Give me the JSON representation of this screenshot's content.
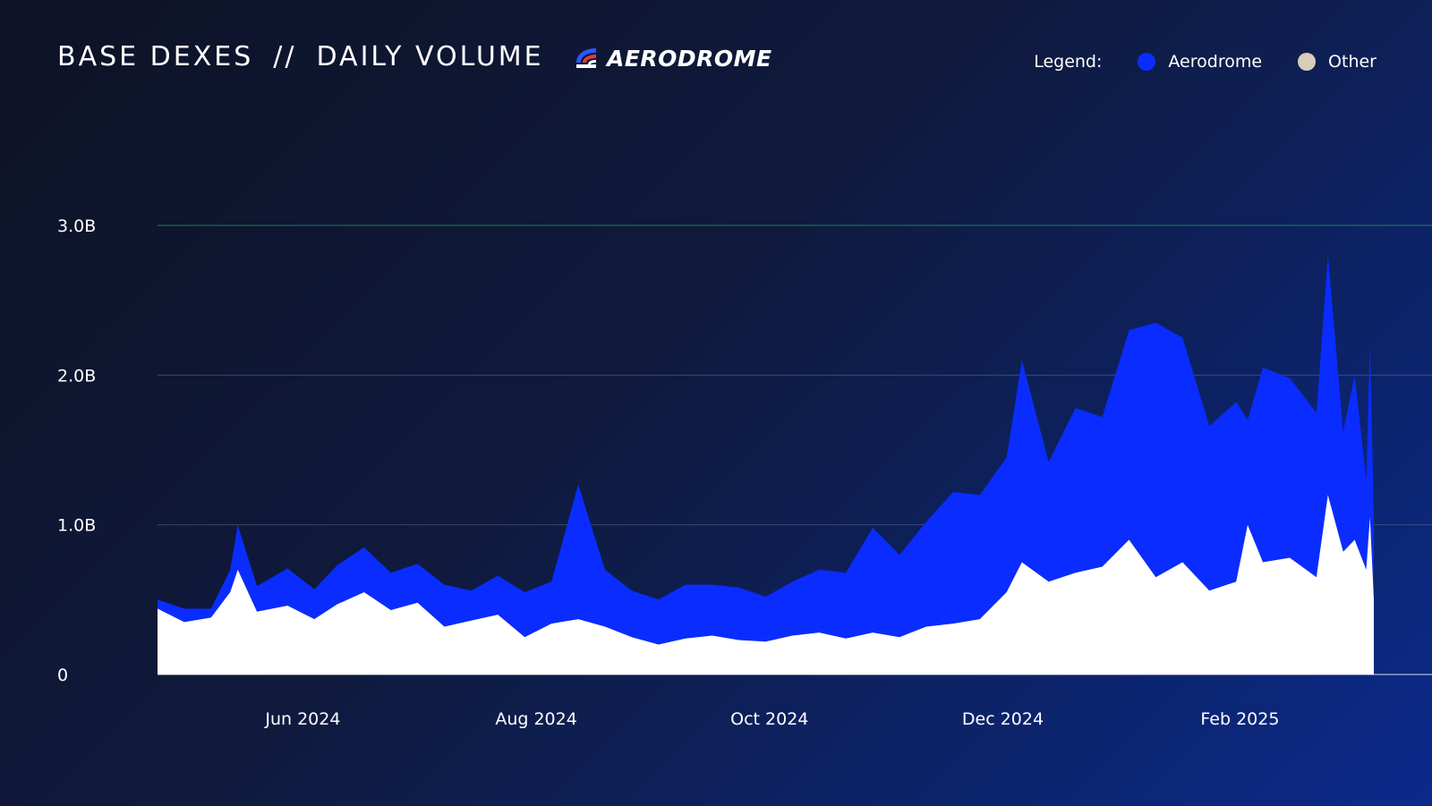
{
  "header": {
    "title_left": "BASE DEXES",
    "separator": "//",
    "title_right": "DAILY VOLUME",
    "brand_name": "AERODROME",
    "brand_icon": "aerodrome-logo-icon"
  },
  "legend": {
    "label": "Legend:",
    "items": [
      {
        "name": "Aerodrome",
        "color": "#0a2cff"
      },
      {
        "name": "Other",
        "color": "#d8cdb8"
      }
    ]
  },
  "chart_data": {
    "type": "area",
    "stacked": true,
    "title": "BASE DEXES // DAILY VOLUME",
    "xlabel": "",
    "ylabel": "",
    "y_ticks": [
      {
        "value": 0,
        "label": "0"
      },
      {
        "value": 1000000000,
        "label": "1.0B"
      },
      {
        "value": 2000000000,
        "label": "2.0B"
      },
      {
        "value": 3000000000,
        "label": "3.0B"
      }
    ],
    "ylim": [
      0,
      3000000000
    ],
    "x_ticks": [
      {
        "date": "2024-06-01",
        "label": "Jun 2024"
      },
      {
        "date": "2024-08-01",
        "label": "Aug 2024"
      },
      {
        "date": "2024-10-01",
        "label": "Oct 2024"
      },
      {
        "date": "2024-12-01",
        "label": "Dec 2024"
      },
      {
        "date": "2025-02-01",
        "label": "Feb 2025"
      }
    ],
    "xlim": [
      "2024-04-24",
      "2025-03-08"
    ],
    "grid": true,
    "legend_position": "top-right",
    "series": [
      {
        "name": "Other",
        "color": "#ffffff",
        "points": [
          [
            "2024-04-24",
            440000000
          ],
          [
            "2024-05-01",
            350000000
          ],
          [
            "2024-05-08",
            380000000
          ],
          [
            "2024-05-13",
            550000000
          ],
          [
            "2024-05-15",
            700000000
          ],
          [
            "2024-05-20",
            420000000
          ],
          [
            "2024-05-28",
            460000000
          ],
          [
            "2024-06-04",
            370000000
          ],
          [
            "2024-06-10",
            470000000
          ],
          [
            "2024-06-17",
            550000000
          ],
          [
            "2024-06-24",
            430000000
          ],
          [
            "2024-07-01",
            480000000
          ],
          [
            "2024-07-08",
            320000000
          ],
          [
            "2024-07-15",
            360000000
          ],
          [
            "2024-07-22",
            400000000
          ],
          [
            "2024-07-29",
            250000000
          ],
          [
            "2024-08-05",
            340000000
          ],
          [
            "2024-08-12",
            370000000
          ],
          [
            "2024-08-19",
            320000000
          ],
          [
            "2024-08-26",
            250000000
          ],
          [
            "2024-09-02",
            200000000
          ],
          [
            "2024-09-09",
            240000000
          ],
          [
            "2024-09-16",
            260000000
          ],
          [
            "2024-09-23",
            230000000
          ],
          [
            "2024-09-30",
            220000000
          ],
          [
            "2024-10-07",
            260000000
          ],
          [
            "2024-10-14",
            280000000
          ],
          [
            "2024-10-21",
            240000000
          ],
          [
            "2024-10-28",
            280000000
          ],
          [
            "2024-11-04",
            250000000
          ],
          [
            "2024-11-11",
            320000000
          ],
          [
            "2024-11-18",
            340000000
          ],
          [
            "2024-11-25",
            370000000
          ],
          [
            "2024-12-02",
            550000000
          ],
          [
            "2024-12-06",
            750000000
          ],
          [
            "2024-12-13",
            620000000
          ],
          [
            "2024-12-20",
            680000000
          ],
          [
            "2024-12-27",
            720000000
          ],
          [
            "2025-01-03",
            900000000
          ],
          [
            "2025-01-10",
            650000000
          ],
          [
            "2025-01-17",
            750000000
          ],
          [
            "2025-01-24",
            560000000
          ],
          [
            "2025-01-31",
            620000000
          ],
          [
            "2025-02-03",
            1000000000
          ],
          [
            "2025-02-07",
            750000000
          ],
          [
            "2025-02-14",
            780000000
          ],
          [
            "2025-02-21",
            650000000
          ],
          [
            "2025-02-24",
            1200000000
          ],
          [
            "2025-02-28",
            820000000
          ],
          [
            "2025-03-03",
            900000000
          ],
          [
            "2025-03-06",
            700000000
          ],
          [
            "2025-03-07",
            1050000000
          ],
          [
            "2025-03-08",
            500000000
          ]
        ]
      },
      {
        "name": "Aerodrome",
        "color": "#0a2cff",
        "points": [
          [
            "2024-04-24",
            60000000
          ],
          [
            "2024-05-01",
            90000000
          ],
          [
            "2024-05-08",
            60000000
          ],
          [
            "2024-05-13",
            150000000
          ],
          [
            "2024-05-15",
            300000000
          ],
          [
            "2024-05-20",
            170000000
          ],
          [
            "2024-05-28",
            250000000
          ],
          [
            "2024-06-04",
            200000000
          ],
          [
            "2024-06-10",
            260000000
          ],
          [
            "2024-06-17",
            300000000
          ],
          [
            "2024-06-24",
            250000000
          ],
          [
            "2024-07-01",
            260000000
          ],
          [
            "2024-07-08",
            280000000
          ],
          [
            "2024-07-15",
            200000000
          ],
          [
            "2024-07-22",
            260000000
          ],
          [
            "2024-07-29",
            300000000
          ],
          [
            "2024-08-05",
            280000000
          ],
          [
            "2024-08-12",
            900000000
          ],
          [
            "2024-08-19",
            380000000
          ],
          [
            "2024-08-26",
            310000000
          ],
          [
            "2024-09-02",
            300000000
          ],
          [
            "2024-09-09",
            360000000
          ],
          [
            "2024-09-16",
            340000000
          ],
          [
            "2024-09-23",
            350000000
          ],
          [
            "2024-09-30",
            300000000
          ],
          [
            "2024-10-07",
            360000000
          ],
          [
            "2024-10-14",
            420000000
          ],
          [
            "2024-10-21",
            440000000
          ],
          [
            "2024-10-28",
            700000000
          ],
          [
            "2024-11-04",
            550000000
          ],
          [
            "2024-11-11",
            700000000
          ],
          [
            "2024-11-18",
            880000000
          ],
          [
            "2024-11-25",
            830000000
          ],
          [
            "2024-12-02",
            900000000
          ],
          [
            "2024-12-06",
            1350000000
          ],
          [
            "2024-12-13",
            800000000
          ],
          [
            "2024-12-20",
            1100000000
          ],
          [
            "2024-12-27",
            1000000000
          ],
          [
            "2025-01-03",
            1400000000
          ],
          [
            "2025-01-10",
            1700000000
          ],
          [
            "2025-01-17",
            1500000000
          ],
          [
            "2025-01-24",
            1100000000
          ],
          [
            "2025-01-31",
            1200000000
          ],
          [
            "2025-02-03",
            700000000
          ],
          [
            "2025-02-07",
            1300000000
          ],
          [
            "2025-02-14",
            1200000000
          ],
          [
            "2025-02-21",
            1100000000
          ],
          [
            "2025-02-24",
            1600000000
          ],
          [
            "2025-02-28",
            800000000
          ],
          [
            "2025-03-03",
            1100000000
          ],
          [
            "2025-03-06",
            600000000
          ],
          [
            "2025-03-07",
            1150000000
          ],
          [
            "2025-03-08",
            550000000
          ]
        ]
      }
    ]
  }
}
